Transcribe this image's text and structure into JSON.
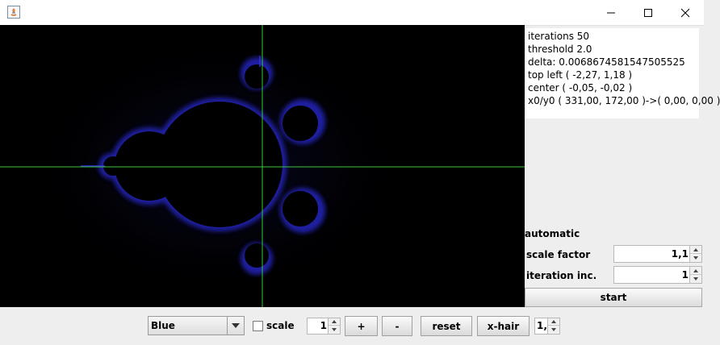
{
  "window": {
    "controls": {
      "minimize_icon": "minimize-icon",
      "maximize_icon": "maximize-icon",
      "close_icon": "close-icon"
    }
  },
  "info": {
    "lines": [
      "iterations 50",
      "threshold 2.0",
      "delta: 0.0068674581547505525",
      "top left ( -2,27,  1,18 )",
      "center ( -0,05, -0,02 )",
      "x0/y0 ( 331,00, 172,00 )->(  0,00,  0,00 )"
    ]
  },
  "automatic": {
    "title": "automatic",
    "scale_factor_label": "scale factor",
    "scale_factor_value": "1,1",
    "iteration_inc_label": "iteration inc.",
    "iteration_inc_value": "1",
    "start_label": "start"
  },
  "toolbar": {
    "color_scheme": "Blue",
    "scale_label": "scale",
    "scale_checked": false,
    "step_value": "1",
    "plus_label": "+",
    "minus_label": "-",
    "reset_label": "reset",
    "xhair_label": "x-hair",
    "zoom_value": "1,"
  },
  "colors": {
    "canvas_bg": "#000000",
    "crosshair": "#3cc83c",
    "fractal_edge": "#2b2bd6"
  }
}
